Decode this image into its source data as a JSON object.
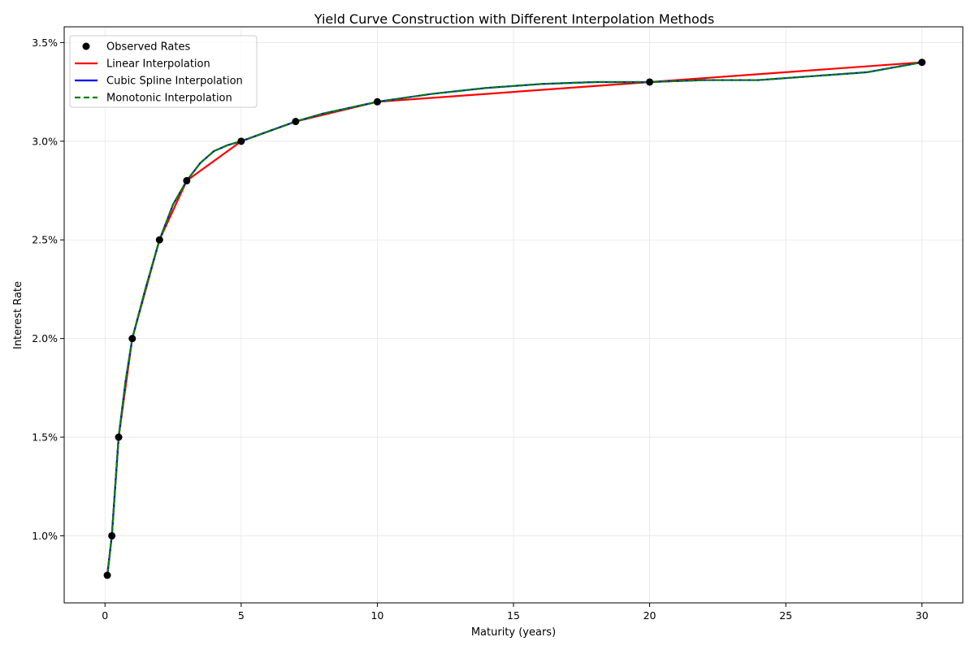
{
  "chart_data": {
    "type": "line",
    "title": "Yield Curve Construction with Different Interpolation Methods",
    "xlabel": "Maturity (years)",
    "ylabel": "Interest Rate",
    "xlim": [
      -1.5,
      31.5
    ],
    "ylim": [
      0.0066,
      0.0358
    ],
    "x_ticks": [
      0,
      5,
      10,
      15,
      20,
      25,
      30
    ],
    "y_ticks": [
      0.01,
      0.015,
      0.02,
      0.025,
      0.03,
      0.035
    ],
    "y_tick_labels": [
      "1.0%",
      "1.5%",
      "2.0%",
      "2.5%",
      "3.0%",
      "3.5%"
    ],
    "grid": true,
    "legend_position": "upper-left",
    "observed": {
      "name": "Observed Rates",
      "color": "#000000",
      "x": [
        0.083,
        0.25,
        0.5,
        1,
        2,
        3,
        5,
        7,
        10,
        20,
        30
      ],
      "y": [
        0.008,
        0.01,
        0.015,
        0.02,
        0.025,
        0.028,
        0.03,
        0.031,
        0.032,
        0.033,
        0.034
      ]
    },
    "series": [
      {
        "name": "Linear Interpolation",
        "color": "#ff0000",
        "style": "solid",
        "x": [
          0.083,
          0.25,
          0.5,
          1,
          2,
          3,
          5,
          7,
          10,
          20,
          30
        ],
        "y": [
          0.008,
          0.01,
          0.015,
          0.02,
          0.025,
          0.028,
          0.03,
          0.031,
          0.032,
          0.033,
          0.034
        ]
      },
      {
        "name": "Cubic Spline Interpolation",
        "color": "#0000ff",
        "style": "solid",
        "x": [
          0.083,
          0.25,
          0.5,
          0.75,
          1,
          1.5,
          2,
          2.5,
          3,
          3.5,
          4,
          4.5,
          5,
          6,
          7,
          8,
          9,
          10,
          12,
          14,
          16,
          18,
          20,
          22,
          24,
          26,
          28,
          30
        ],
        "y": [
          0.008,
          0.01,
          0.015,
          0.0178,
          0.02,
          0.0226,
          0.025,
          0.0268,
          0.028,
          0.0289,
          0.0295,
          0.0298,
          0.03,
          0.0305,
          0.031,
          0.0314,
          0.0317,
          0.032,
          0.0324,
          0.0327,
          0.0329,
          0.033,
          0.033,
          0.0331,
          0.0331,
          0.0333,
          0.0335,
          0.034
        ]
      },
      {
        "name": "Monotonic Interpolation",
        "color": "#008000",
        "style": "dashed",
        "x": [
          0.083,
          0.25,
          0.5,
          0.75,
          1,
          1.5,
          2,
          2.5,
          3,
          3.5,
          4,
          4.5,
          5,
          6,
          7,
          8,
          9,
          10,
          12,
          14,
          16,
          18,
          20,
          22,
          24,
          26,
          28,
          30
        ],
        "y": [
          0.008,
          0.01,
          0.015,
          0.0178,
          0.02,
          0.0226,
          0.025,
          0.0268,
          0.028,
          0.0289,
          0.0295,
          0.0298,
          0.03,
          0.0305,
          0.031,
          0.0314,
          0.0317,
          0.032,
          0.0324,
          0.0327,
          0.0329,
          0.033,
          0.033,
          0.0331,
          0.0331,
          0.0333,
          0.0335,
          0.034
        ]
      }
    ]
  }
}
